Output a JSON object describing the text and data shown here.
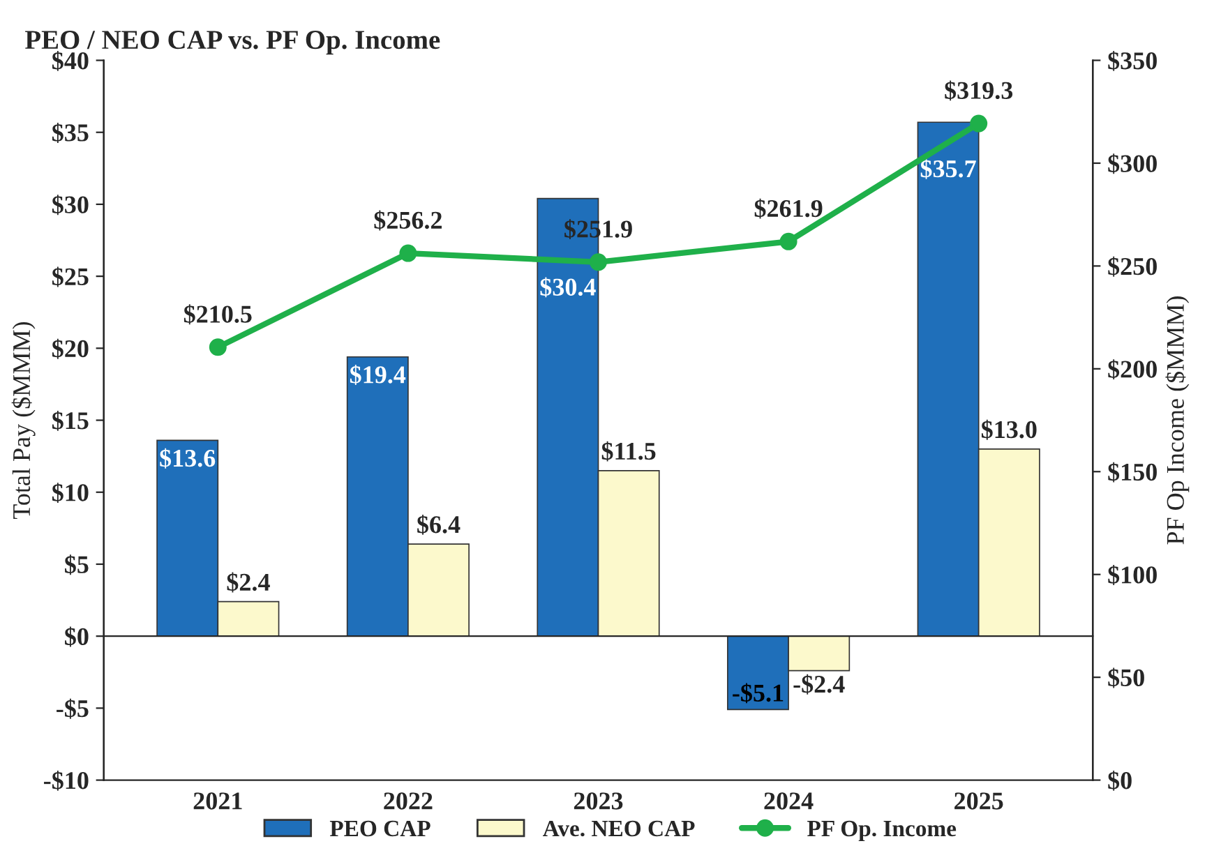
{
  "chart_data": {
    "type": "bar",
    "title": "PEO / NEO CAP vs. PF Op. Income",
    "categories": [
      "2021",
      "2022",
      "2023",
      "2024",
      "2025"
    ],
    "ylabel": "Total Pay ($MMM)",
    "y2label": "PF Op Income ($MMM)",
    "series": [
      {
        "name": "PEO CAP",
        "color": "#1f6fba",
        "values": [
          13.6,
          19.4,
          30.4,
          -5.1,
          35.7
        ],
        "value_labels": [
          "$13.6",
          "$19.4",
          "$30.4",
          "-$5.1",
          "$35.7"
        ]
      },
      {
        "name": "Ave. NEO CAP",
        "color": "#fcf9cc",
        "values": [
          2.4,
          6.4,
          11.5,
          -2.4,
          13.0
        ],
        "value_labels": [
          "$2.4",
          "$6.4",
          "$11.5",
          "-$2.4",
          "$13.0"
        ]
      },
      {
        "name": "PF Op. Income",
        "type": "line",
        "axis": "y2",
        "color": "#1fb04a",
        "values": [
          210.5,
          256.2,
          251.9,
          261.9,
          319.3
        ],
        "value_labels": [
          "$210.5",
          "$256.2",
          "$251.9",
          "$261.9",
          "$319.3"
        ]
      }
    ],
    "ylim": [
      -10,
      40
    ],
    "yticks": [
      {
        "value": -10,
        "label": "-$10"
      },
      {
        "value": -5,
        "label": "-$5"
      },
      {
        "value": 0,
        "label": "$0"
      },
      {
        "value": 5,
        "label": "$5"
      },
      {
        "value": 10,
        "label": "$10"
      },
      {
        "value": 15,
        "label": "$15"
      },
      {
        "value": 20,
        "label": "$20"
      },
      {
        "value": 25,
        "label": "$25"
      },
      {
        "value": 30,
        "label": "$30"
      },
      {
        "value": 35,
        "label": "$35"
      },
      {
        "value": 40,
        "label": "$40"
      }
    ],
    "y2lim": [
      0,
      350
    ],
    "y2ticks": [
      {
        "value": 0,
        "label": "$0"
      },
      {
        "value": 50,
        "label": "$50"
      },
      {
        "value": 100,
        "label": "$100"
      },
      {
        "value": 150,
        "label": "$150"
      },
      {
        "value": 200,
        "label": "$200"
      },
      {
        "value": 250,
        "label": "$250"
      },
      {
        "value": 300,
        "label": "$300"
      },
      {
        "value": 350,
        "label": "$350"
      }
    ],
    "marker": "circle",
    "line_style": "solid",
    "legend": "bottom"
  }
}
